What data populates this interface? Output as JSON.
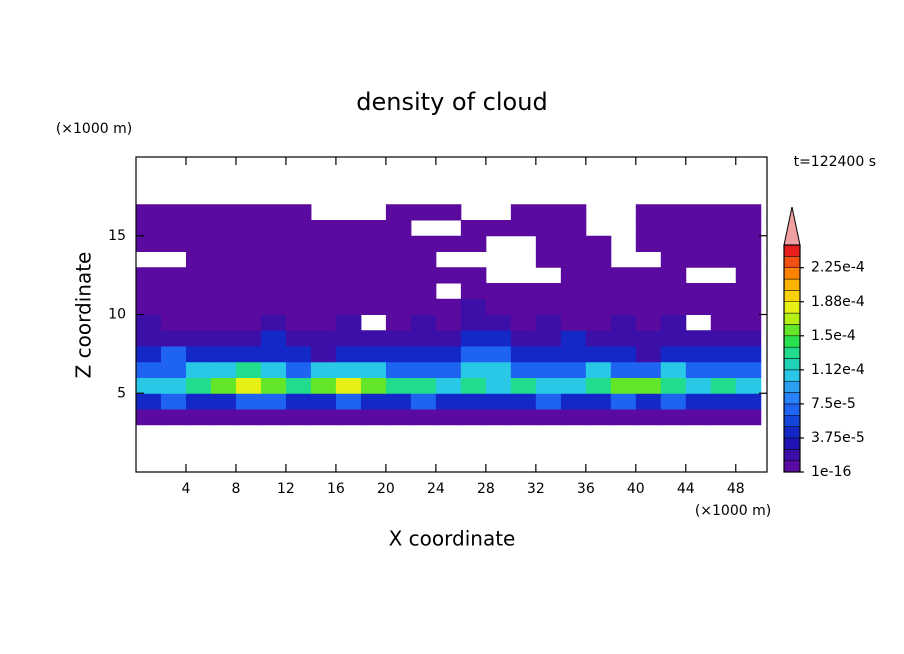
{
  "chart_data": {
    "type": "contour",
    "title": "density of cloud",
    "subtitle": "t=122400 s",
    "x_label": "X coordinate",
    "y_label": "Z coordinate",
    "x_unit": "(×1000 m)",
    "y_unit": "(×1000 m)",
    "xlim": [
      0,
      50.5
    ],
    "ylim": [
      0,
      20
    ],
    "xticks": [
      4,
      8,
      12,
      16,
      20,
      24,
      28,
      32,
      36,
      40,
      44,
      48
    ],
    "yticks": [
      5,
      10,
      15
    ],
    "xbins": [
      0,
      2,
      4,
      6,
      8,
      10,
      12,
      14,
      16,
      18,
      20,
      22,
      24,
      26,
      28,
      30,
      32,
      34,
      36,
      38,
      40,
      42,
      44,
      46,
      48,
      50
    ],
    "ybins": [
      3,
      4,
      5,
      6,
      7,
      8,
      9,
      10,
      11,
      12,
      13,
      14,
      15,
      16,
      17
    ],
    "values": [
      [
        5e-06,
        5e-06,
        5e-06,
        5e-06,
        5e-06,
        5e-06,
        5e-06,
        5e-06,
        5e-06,
        5e-06,
        5e-06,
        5e-06,
        5e-06,
        5e-06,
        5e-06,
        5e-06,
        5e-06,
        5e-06,
        5e-06,
        5e-06,
        5e-06,
        5e-06,
        5e-06,
        5e-06,
        5e-06
      ],
      [
        4e-05,
        7e-05,
        4e-05,
        4e-05,
        7e-05,
        7e-05,
        4e-05,
        4e-05,
        7e-05,
        4e-05,
        4e-05,
        7e-05,
        4e-05,
        4e-05,
        4e-05,
        4e-05,
        7e-05,
        4e-05,
        4e-05,
        7e-05,
        4e-05,
        7e-05,
        4e-05,
        4e-05,
        4e-05
      ],
      [
        0.0001,
        0.0001,
        0.00013,
        0.00016,
        0.00018,
        0.00016,
        0.00013,
        0.00016,
        0.00018,
        0.00016,
        0.00013,
        0.00013,
        0.0001,
        0.00013,
        0.0001,
        0.00013,
        0.0001,
        0.0001,
        0.00013,
        0.00016,
        0.00016,
        0.00013,
        0.0001,
        0.00013,
        0.0001
      ],
      [
        7e-05,
        7e-05,
        0.0001,
        0.0001,
        0.00013,
        0.0001,
        7e-05,
        0.0001,
        0.0001,
        0.0001,
        7e-05,
        7e-05,
        7e-05,
        0.0001,
        0.0001,
        7e-05,
        7e-05,
        7e-05,
        0.0001,
        7e-05,
        7e-05,
        0.0001,
        7e-05,
        7e-05,
        7e-05
      ],
      [
        4e-05,
        7e-05,
        4e-05,
        4e-05,
        4e-05,
        4e-05,
        4e-05,
        2e-05,
        4e-05,
        4e-05,
        4e-05,
        4e-05,
        4e-05,
        7e-05,
        7e-05,
        4e-05,
        4e-05,
        4e-05,
        4e-05,
        4e-05,
        2e-05,
        4e-05,
        4e-05,
        4e-05,
        4e-05
      ],
      [
        2e-05,
        2e-05,
        2e-05,
        2e-05,
        2e-05,
        4e-05,
        2e-05,
        2e-05,
        2e-05,
        2e-05,
        2e-05,
        2e-05,
        2e-05,
        4e-05,
        4e-05,
        2e-05,
        2e-05,
        4e-05,
        2e-05,
        2e-05,
        2e-05,
        2e-05,
        2e-05,
        2e-05,
        2e-05
      ],
      [
        2e-05,
        5e-06,
        5e-06,
        5e-06,
        5e-06,
        2e-05,
        5e-06,
        5e-06,
        2e-05,
        null,
        5e-06,
        2e-05,
        5e-06,
        2e-05,
        2e-05,
        5e-06,
        2e-05,
        5e-06,
        5e-06,
        2e-05,
        5e-06,
        2e-05,
        null,
        5e-06,
        5e-06
      ],
      [
        5e-06,
        5e-06,
        5e-06,
        5e-06,
        5e-06,
        5e-06,
        5e-06,
        5e-06,
        5e-06,
        5e-06,
        5e-06,
        5e-06,
        5e-06,
        2e-05,
        5e-06,
        5e-06,
        5e-06,
        5e-06,
        5e-06,
        5e-06,
        5e-06,
        5e-06,
        5e-06,
        5e-06,
        5e-06
      ],
      [
        5e-06,
        5e-06,
        5e-06,
        5e-06,
        5e-06,
        5e-06,
        5e-06,
        5e-06,
        5e-06,
        5e-06,
        5e-06,
        5e-06,
        null,
        5e-06,
        5e-06,
        5e-06,
        5e-06,
        5e-06,
        5e-06,
        5e-06,
        5e-06,
        5e-06,
        5e-06,
        5e-06,
        5e-06
      ],
      [
        5e-06,
        5e-06,
        5e-06,
        5e-06,
        5e-06,
        5e-06,
        5e-06,
        5e-06,
        5e-06,
        5e-06,
        5e-06,
        5e-06,
        5e-06,
        5e-06,
        null,
        null,
        null,
        5e-06,
        5e-06,
        5e-06,
        5e-06,
        5e-06,
        null,
        null,
        5e-06
      ],
      [
        null,
        null,
        5e-06,
        5e-06,
        5e-06,
        5e-06,
        5e-06,
        5e-06,
        5e-06,
        5e-06,
        5e-06,
        5e-06,
        null,
        null,
        null,
        null,
        5e-06,
        5e-06,
        5e-06,
        null,
        null,
        5e-06,
        5e-06,
        5e-06,
        5e-06
      ],
      [
        5e-06,
        5e-06,
        5e-06,
        5e-06,
        5e-06,
        5e-06,
        5e-06,
        5e-06,
        5e-06,
        5e-06,
        5e-06,
        5e-06,
        5e-06,
        5e-06,
        null,
        null,
        5e-06,
        5e-06,
        5e-06,
        null,
        5e-06,
        5e-06,
        5e-06,
        5e-06,
        5e-06
      ],
      [
        5e-06,
        5e-06,
        5e-06,
        5e-06,
        5e-06,
        5e-06,
        5e-06,
        5e-06,
        5e-06,
        5e-06,
        5e-06,
        null,
        null,
        5e-06,
        5e-06,
        5e-06,
        5e-06,
        5e-06,
        null,
        null,
        5e-06,
        5e-06,
        5e-06,
        5e-06,
        5e-06
      ],
      [
        5e-06,
        5e-06,
        5e-06,
        5e-06,
        5e-06,
        5e-06,
        5e-06,
        null,
        null,
        null,
        5e-06,
        5e-06,
        5e-06,
        null,
        null,
        5e-06,
        5e-06,
        5e-06,
        null,
        null,
        5e-06,
        5e-06,
        5e-06,
        5e-06,
        5e-06
      ]
    ],
    "levels": [
      1e-16,
      1.25e-05,
      2.5e-05,
      3.75e-05,
      5e-05,
      6.25e-05,
      7.5e-05,
      8.75e-05,
      0.0001,
      0.0001125,
      0.000125,
      0.0001375,
      0.00015,
      0.0001625,
      0.000175,
      0.0001875,
      0.0002,
      0.0002125,
      0.000225,
      0.0002375,
      0.00025
    ],
    "colors": [
      "#5a0a9e",
      "#3c10a8",
      "#1e14b4",
      "#1428c8",
      "#1446dc",
      "#1e64f0",
      "#2882fa",
      "#2ca0f0",
      "#28c8e6",
      "#20d2b4",
      "#20dc8c",
      "#28e050",
      "#64e628",
      "#b4f014",
      "#e6f014",
      "#fad20a",
      "#fab400",
      "#fa8200",
      "#f05014",
      "#e61e1e"
    ],
    "over_color": "#f0a0a0",
    "colorbar_ticks": [
      {
        "value": 1e-16,
        "label": "1e-16"
      },
      {
        "value": 3.75e-05,
        "label": "3.75e-5"
      },
      {
        "value": 7.5e-05,
        "label": "7.5e-5"
      },
      {
        "value": 0.0001125,
        "label": "1.12e-4"
      },
      {
        "value": 0.00015,
        "label": "1.5e-4"
      },
      {
        "value": 0.0001875,
        "label": "1.88e-4"
      },
      {
        "value": 0.000225,
        "label": "2.25e-4"
      }
    ]
  }
}
